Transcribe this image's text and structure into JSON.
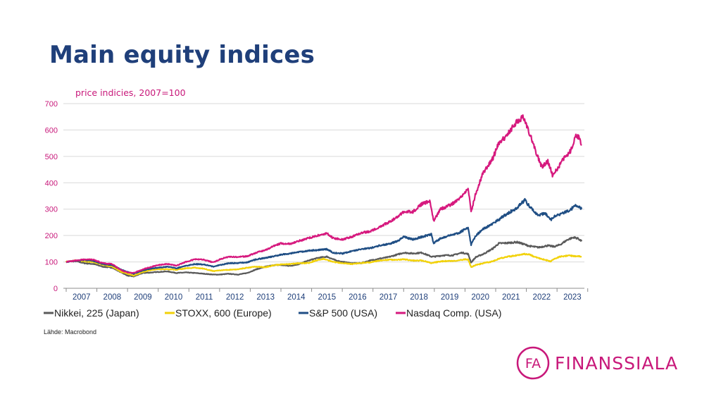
{
  "title": "Main equity indices",
  "source": "Lähde: Macrobond",
  "logo": {
    "mark": "FA",
    "text": "FINANSSIALA",
    "color": "#c8187a"
  },
  "chart_data": {
    "type": "line",
    "subtitle": "price indicies, 2007=100",
    "x_start": 2007.0,
    "x_end": 2023.8,
    "x_ticks": [
      "2007",
      "2008",
      "2009",
      "2010",
      "2011",
      "2012",
      "2013",
      "2014",
      "2015",
      "2016",
      "2017",
      "2018",
      "2019",
      "2020",
      "2021",
      "2022",
      "2023"
    ],
    "y_ticks": [
      0,
      100,
      200,
      300,
      400,
      500,
      600,
      700
    ],
    "ylim": [
      0,
      700
    ],
    "grid": true,
    "legend_position": "bottom",
    "series": [
      {
        "name": "Nikkei, 225 (Japan)",
        "color": "#5a5a5a",
        "points": [
          [
            2007.0,
            100
          ],
          [
            2007.3,
            103
          ],
          [
            2007.6,
            95
          ],
          [
            2007.9,
            92
          ],
          [
            2008.2,
            82
          ],
          [
            2008.5,
            78
          ],
          [
            2008.8,
            60
          ],
          [
            2009.0,
            48
          ],
          [
            2009.2,
            45
          ],
          [
            2009.5,
            58
          ],
          [
            2009.8,
            60
          ],
          [
            2010.0,
            62
          ],
          [
            2010.3,
            64
          ],
          [
            2010.6,
            58
          ],
          [
            2010.9,
            60
          ],
          [
            2011.2,
            58
          ],
          [
            2011.5,
            55
          ],
          [
            2011.8,
            52
          ],
          [
            2012.0,
            52
          ],
          [
            2012.3,
            55
          ],
          [
            2012.6,
            52
          ],
          [
            2012.9,
            58
          ],
          [
            2013.2,
            72
          ],
          [
            2013.5,
            82
          ],
          [
            2013.8,
            88
          ],
          [
            2014.0,
            88
          ],
          [
            2014.3,
            85
          ],
          [
            2014.6,
            92
          ],
          [
            2014.9,
            105
          ],
          [
            2015.2,
            115
          ],
          [
            2015.5,
            120
          ],
          [
            2015.8,
            105
          ],
          [
            2016.0,
            100
          ],
          [
            2016.3,
            95
          ],
          [
            2016.6,
            95
          ],
          [
            2016.9,
            105
          ],
          [
            2017.2,
            112
          ],
          [
            2017.5,
            118
          ],
          [
            2017.8,
            128
          ],
          [
            2018.0,
            135
          ],
          [
            2018.3,
            132
          ],
          [
            2018.6,
            135
          ],
          [
            2018.9,
            120
          ],
          [
            2019.0,
            120
          ],
          [
            2019.3,
            125
          ],
          [
            2019.6,
            125
          ],
          [
            2019.9,
            135
          ],
          [
            2020.1,
            130
          ],
          [
            2020.2,
            98
          ],
          [
            2020.35,
            118
          ],
          [
            2020.6,
            130
          ],
          [
            2020.9,
            150
          ],
          [
            2021.1,
            170
          ],
          [
            2021.4,
            172
          ],
          [
            2021.7,
            175
          ],
          [
            2021.9,
            168
          ],
          [
            2022.1,
            160
          ],
          [
            2022.4,
            155
          ],
          [
            2022.7,
            162
          ],
          [
            2022.9,
            158
          ],
          [
            2023.1,
            165
          ],
          [
            2023.35,
            185
          ],
          [
            2023.55,
            193
          ],
          [
            2023.7,
            188
          ],
          [
            2023.8,
            178
          ]
        ]
      },
      {
        "name": "STOXX, 600 (Europe)",
        "color": "#f2d20a",
        "points": [
          [
            2007.0,
            100
          ],
          [
            2007.3,
            106
          ],
          [
            2007.6,
            102
          ],
          [
            2007.9,
            100
          ],
          [
            2008.2,
            88
          ],
          [
            2008.5,
            82
          ],
          [
            2008.8,
            62
          ],
          [
            2009.0,
            55
          ],
          [
            2009.2,
            48
          ],
          [
            2009.5,
            62
          ],
          [
            2009.8,
            70
          ],
          [
            2010.0,
            72
          ],
          [
            2010.3,
            72
          ],
          [
            2010.6,
            70
          ],
          [
            2010.9,
            76
          ],
          [
            2011.2,
            78
          ],
          [
            2011.5,
            74
          ],
          [
            2011.8,
            65
          ],
          [
            2012.0,
            68
          ],
          [
            2012.3,
            70
          ],
          [
            2012.6,
            72
          ],
          [
            2012.9,
            78
          ],
          [
            2013.2,
            82
          ],
          [
            2013.5,
            80
          ],
          [
            2013.8,
            88
          ],
          [
            2014.0,
            90
          ],
          [
            2014.3,
            92
          ],
          [
            2014.6,
            95
          ],
          [
            2014.9,
            96
          ],
          [
            2015.2,
            108
          ],
          [
            2015.4,
            112
          ],
          [
            2015.7,
            100
          ],
          [
            2016.0,
            95
          ],
          [
            2016.3,
            92
          ],
          [
            2016.6,
            96
          ],
          [
            2016.9,
            98
          ],
          [
            2017.2,
            105
          ],
          [
            2017.5,
            108
          ],
          [
            2017.8,
            108
          ],
          [
            2018.0,
            110
          ],
          [
            2018.3,
            105
          ],
          [
            2018.6,
            105
          ],
          [
            2018.9,
            96
          ],
          [
            2019.0,
            98
          ],
          [
            2019.3,
            103
          ],
          [
            2019.6,
            103
          ],
          [
            2019.9,
            108
          ],
          [
            2020.1,
            110
          ],
          [
            2020.2,
            80
          ],
          [
            2020.35,
            88
          ],
          [
            2020.6,
            95
          ],
          [
            2020.9,
            102
          ],
          [
            2021.1,
            112
          ],
          [
            2021.4,
            120
          ],
          [
            2021.7,
            125
          ],
          [
            2021.9,
            130
          ],
          [
            2022.1,
            128
          ],
          [
            2022.3,
            118
          ],
          [
            2022.6,
            108
          ],
          [
            2022.8,
            102
          ],
          [
            2022.9,
            112
          ],
          [
            2023.1,
            120
          ],
          [
            2023.35,
            124
          ],
          [
            2023.6,
            122
          ],
          [
            2023.8,
            120
          ]
        ]
      },
      {
        "name": "S&P 500 (USA)",
        "color": "#1f4e84",
        "points": [
          [
            2007.0,
            100
          ],
          [
            2007.3,
            104
          ],
          [
            2007.6,
            108
          ],
          [
            2007.9,
            104
          ],
          [
            2008.2,
            92
          ],
          [
            2008.5,
            88
          ],
          [
            2008.8,
            70
          ],
          [
            2009.0,
            62
          ],
          [
            2009.2,
            55
          ],
          [
            2009.5,
            68
          ],
          [
            2009.8,
            75
          ],
          [
            2010.0,
            78
          ],
          [
            2010.3,
            82
          ],
          [
            2010.6,
            76
          ],
          [
            2010.9,
            85
          ],
          [
            2011.2,
            92
          ],
          [
            2011.5,
            90
          ],
          [
            2011.8,
            82
          ],
          [
            2012.0,
            88
          ],
          [
            2012.3,
            95
          ],
          [
            2012.6,
            96
          ],
          [
            2012.9,
            98
          ],
          [
            2013.2,
            110
          ],
          [
            2013.5,
            115
          ],
          [
            2013.8,
            122
          ],
          [
            2014.0,
            128
          ],
          [
            2014.3,
            132
          ],
          [
            2014.6,
            138
          ],
          [
            2014.9,
            142
          ],
          [
            2015.2,
            145
          ],
          [
            2015.5,
            148
          ],
          [
            2015.7,
            135
          ],
          [
            2016.0,
            132
          ],
          [
            2016.3,
            140
          ],
          [
            2016.6,
            148
          ],
          [
            2016.9,
            152
          ],
          [
            2017.2,
            162
          ],
          [
            2017.5,
            168
          ],
          [
            2017.8,
            178
          ],
          [
            2018.0,
            195
          ],
          [
            2018.3,
            185
          ],
          [
            2018.6,
            195
          ],
          [
            2018.9,
            205
          ],
          [
            2018.98,
            170
          ],
          [
            2019.2,
            190
          ],
          [
            2019.5,
            200
          ],
          [
            2019.8,
            210
          ],
          [
            2020.1,
            230
          ],
          [
            2020.2,
            165
          ],
          [
            2020.35,
            200
          ],
          [
            2020.6,
            225
          ],
          [
            2020.9,
            245
          ],
          [
            2021.1,
            260
          ],
          [
            2021.4,
            285
          ],
          [
            2021.7,
            305
          ],
          [
            2021.95,
            335
          ],
          [
            2022.1,
            310
          ],
          [
            2022.4,
            275
          ],
          [
            2022.6,
            285
          ],
          [
            2022.8,
            260
          ],
          [
            2022.95,
            275
          ],
          [
            2023.2,
            285
          ],
          [
            2023.45,
            298
          ],
          [
            2023.6,
            318
          ],
          [
            2023.72,
            308
          ],
          [
            2023.8,
            300
          ]
        ]
      },
      {
        "name": "Nasdaq Comp. (USA)",
        "color": "#d6197e",
        "points": [
          [
            2007.0,
            100
          ],
          [
            2007.3,
            105
          ],
          [
            2007.6,
            110
          ],
          [
            2007.9,
            108
          ],
          [
            2008.2,
            95
          ],
          [
            2008.5,
            92
          ],
          [
            2008.8,
            68
          ],
          [
            2009.0,
            60
          ],
          [
            2009.2,
            58
          ],
          [
            2009.5,
            72
          ],
          [
            2009.8,
            82
          ],
          [
            2010.0,
            88
          ],
          [
            2010.3,
            92
          ],
          [
            2010.6,
            86
          ],
          [
            2010.9,
            100
          ],
          [
            2011.2,
            110
          ],
          [
            2011.5,
            108
          ],
          [
            2011.8,
            98
          ],
          [
            2012.0,
            110
          ],
          [
            2012.3,
            120
          ],
          [
            2012.6,
            118
          ],
          [
            2012.9,
            122
          ],
          [
            2013.2,
            135
          ],
          [
            2013.5,
            145
          ],
          [
            2013.8,
            162
          ],
          [
            2014.0,
            170
          ],
          [
            2014.3,
            168
          ],
          [
            2014.6,
            180
          ],
          [
            2014.9,
            190
          ],
          [
            2015.2,
            200
          ],
          [
            2015.5,
            208
          ],
          [
            2015.7,
            190
          ],
          [
            2016.0,
            185
          ],
          [
            2016.3,
            195
          ],
          [
            2016.6,
            210
          ],
          [
            2016.9,
            215
          ],
          [
            2017.2,
            232
          ],
          [
            2017.5,
            250
          ],
          [
            2017.8,
            270
          ],
          [
            2018.0,
            290
          ],
          [
            2018.3,
            290
          ],
          [
            2018.6,
            320
          ],
          [
            2018.85,
            330
          ],
          [
            2018.98,
            255
          ],
          [
            2019.2,
            300
          ],
          [
            2019.5,
            315
          ],
          [
            2019.8,
            335
          ],
          [
            2020.1,
            380
          ],
          [
            2020.2,
            290
          ],
          [
            2020.35,
            360
          ],
          [
            2020.6,
            440
          ],
          [
            2020.9,
            490
          ],
          [
            2021.1,
            550
          ],
          [
            2021.3,
            570
          ],
          [
            2021.6,
            620
          ],
          [
            2021.9,
            650
          ],
          [
            2022.1,
            590
          ],
          [
            2022.3,
            520
          ],
          [
            2022.5,
            460
          ],
          [
            2022.7,
            480
          ],
          [
            2022.85,
            430
          ],
          [
            2023.0,
            450
          ],
          [
            2023.2,
            490
          ],
          [
            2023.45,
            520
          ],
          [
            2023.6,
            580
          ],
          [
            2023.72,
            570
          ],
          [
            2023.8,
            545
          ]
        ]
      }
    ]
  }
}
